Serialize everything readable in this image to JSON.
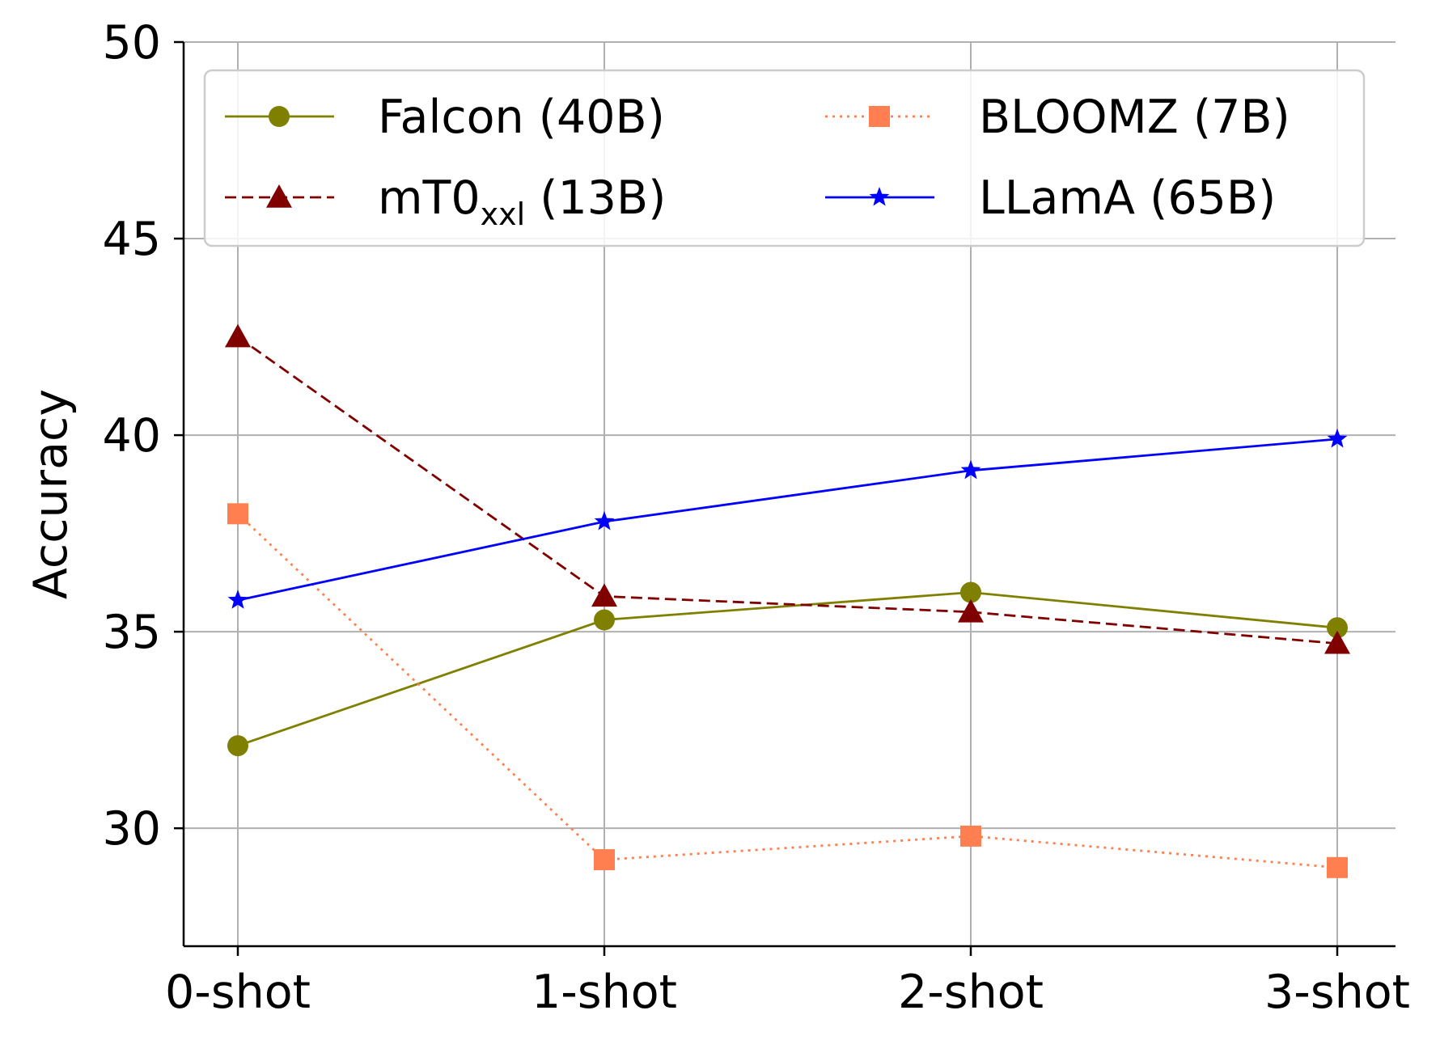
{
  "chart_data": {
    "type": "line",
    "categories": [
      "0-shot",
      "1-shot",
      "2-shot",
      "3-shot"
    ],
    "ylabel": "Accuracy",
    "xlabel": "",
    "ylim": [
      27,
      50
    ],
    "yticks": [
      30,
      35,
      40,
      45,
      50
    ],
    "grid": true,
    "legend_placement": "top",
    "series": [
      {
        "name": "Falcon (40B)",
        "name_main": "Falcon (40B)",
        "name_sub": "",
        "name_tail": "",
        "color": "#808000",
        "marker": "circle",
        "linestyle": "solid",
        "values": [
          32.1,
          35.3,
          36.0,
          35.1
        ]
      },
      {
        "name": "mT0xxl (13B)",
        "name_main": "mT0",
        "name_sub": "xxl",
        "name_tail": " (13B)",
        "color": "#800000",
        "marker": "triangle",
        "linestyle": "dashed",
        "values": [
          42.5,
          35.9,
          35.5,
          34.7
        ]
      },
      {
        "name": "BLOOMZ (7B)",
        "name_main": "BLOOMZ (7B)",
        "name_sub": "",
        "name_tail": "",
        "color": "#ff7f50",
        "marker": "square",
        "linestyle": "dotted",
        "values": [
          38.0,
          29.2,
          29.8,
          29.0
        ]
      },
      {
        "name": "LLamA (65B)",
        "name_main": "LLamA (65B)",
        "name_sub": "",
        "name_tail": "",
        "color": "#0000ff",
        "marker": "star",
        "linestyle": "solid",
        "values": [
          35.8,
          37.8,
          39.1,
          39.9
        ]
      }
    ]
  }
}
